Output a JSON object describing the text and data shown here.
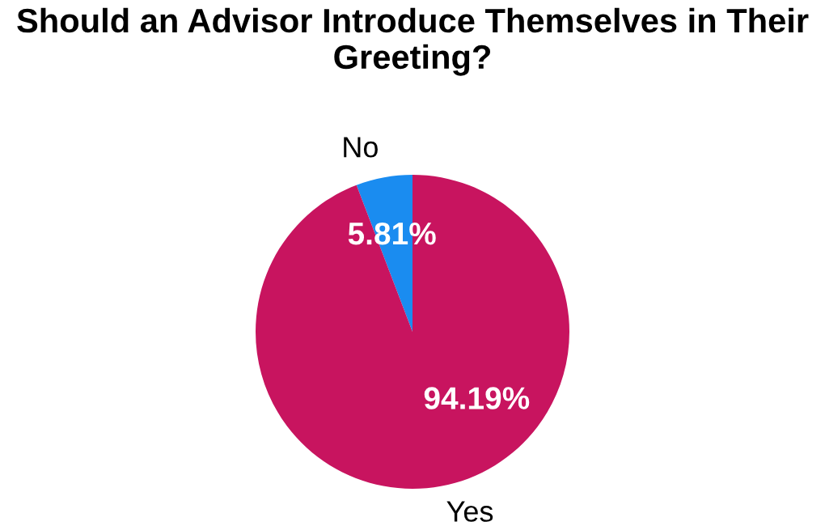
{
  "chart_data": {
    "type": "pie",
    "title": "Should an Advisor Introduce Themselves in Their Greeting?",
    "categories": [
      "No",
      "Yes"
    ],
    "values": [
      5.81,
      94.19
    ],
    "colors": [
      "#1a8cf0",
      "#c8145f"
    ],
    "value_labels": [
      "5.81%",
      "94.19%"
    ],
    "legend": false
  }
}
